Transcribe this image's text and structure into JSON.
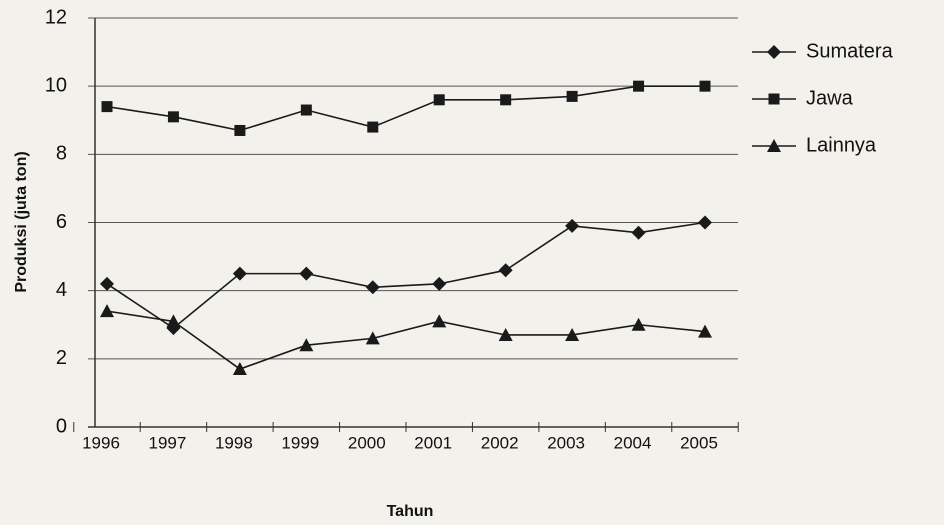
{
  "chart_data": {
    "type": "line",
    "x_label": "Tahun",
    "y_label": "Produksi (juta ton)",
    "categories": [
      "1996",
      "1997",
      "1998",
      "1999",
      "2000",
      "2001",
      "2002",
      "2003",
      "2004",
      "2005"
    ],
    "series": [
      {
        "name": "Sumatera",
        "color": "#1a1a1a",
        "marker": "diamond",
        "values": [
          4.2,
          2.9,
          4.5,
          4.5,
          4.1,
          4.2,
          4.6,
          5.9,
          5.7,
          6.0
        ]
      },
      {
        "name": "Jawa",
        "color": "#1a1a1a",
        "marker": "square",
        "values": [
          9.4,
          9.1,
          8.7,
          9.3,
          8.8,
          9.6,
          9.6,
          9.7,
          10.0,
          10.0
        ]
      },
      {
        "name": "Lainnya",
        "color": "#1a1a1a",
        "marker": "triangle",
        "values": [
          3.4,
          3.1,
          1.7,
          2.4,
          2.6,
          3.1,
          2.7,
          2.7,
          3.0,
          2.8
        ]
      }
    ],
    "ylim": [
      0,
      12
    ],
    "yticks": [
      0,
      2,
      4,
      6,
      8,
      10,
      12
    ],
    "grid": true,
    "legend": "top-right"
  }
}
